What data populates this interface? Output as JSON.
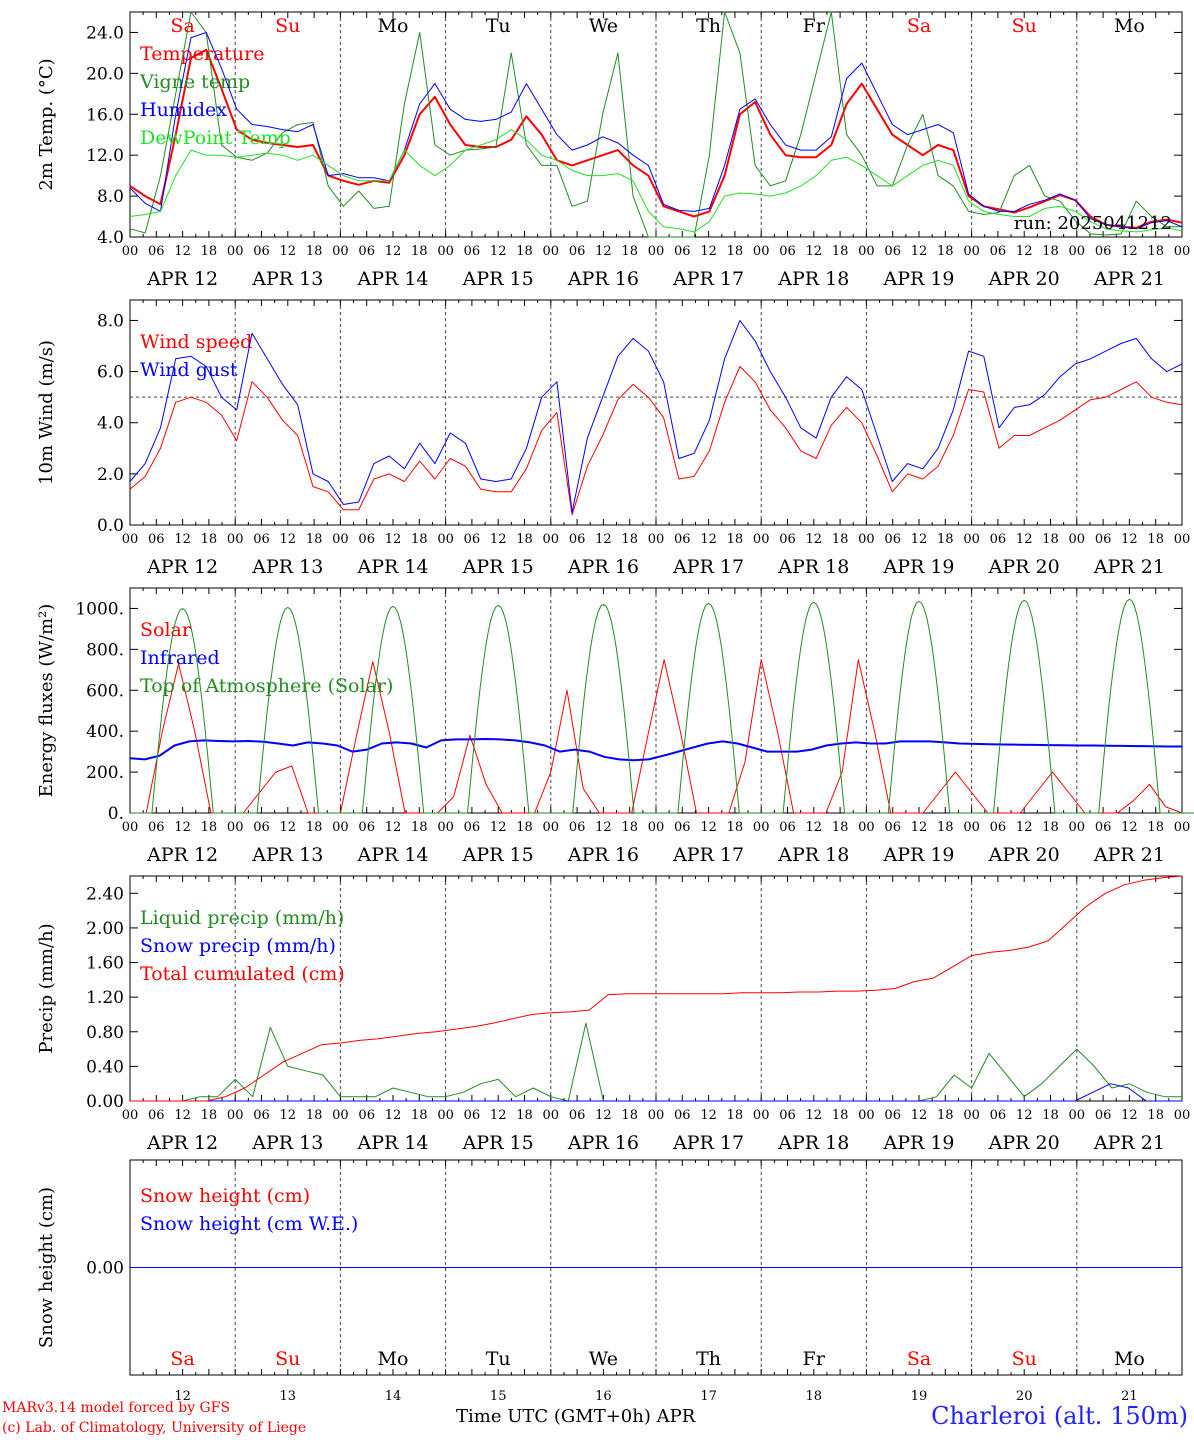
{
  "days": [
    "12",
    "13",
    "14",
    "15",
    "16",
    "17",
    "18",
    "19",
    "20",
    "21"
  ],
  "weekdays": [
    "Sa",
    "Su",
    "Mo",
    "Tu",
    "We",
    "Th",
    "Fr",
    "Sa",
    "Su",
    "Mo"
  ],
  "weekday_colors": [
    "#ff0000",
    "#ff0000",
    "#000000",
    "#000000",
    "#000000",
    "#000000",
    "#000000",
    "#ff0000",
    "#ff0000",
    "#000000"
  ],
  "month": "APR",
  "hour_ticks": [
    "00",
    "06",
    "12",
    "18"
  ],
  "date_labels": [
    "APR 12",
    "APR 13",
    "APR 14",
    "APR 15",
    "APR 16",
    "APR 17",
    "APR 18",
    "APR 19",
    "APR 20",
    "APR 21"
  ],
  "footer": {
    "credit1": "MARv3.14 model forced by GFS",
    "credit2": "(c) Lab. of Climatology, University of Liege",
    "xtitle": "Time UTC (GMT+0h) APR",
    "station": "Charleroi (alt. 150m)"
  },
  "chart_data": [
    {
      "type": "line",
      "ylabel": "2m Temp. (°C)",
      "ylim": [
        4,
        26
      ],
      "yticks": [
        "4.0",
        "8.0",
        "12.0",
        "16.0",
        "20.0",
        "24.0"
      ],
      "yticks_values": [
        4,
        8,
        12,
        16,
        20,
        24
      ],
      "annotation": "run: 2025041212",
      "x_start": "2025-04-12 00:00",
      "x_step_hours": 6,
      "series": [
        {
          "name": "Temperature",
          "color": "#ff0000",
          "width": 2,
          "values": [
            9.0,
            8.0,
            7.2,
            14.0,
            21.5,
            22.3,
            18.5,
            14.5,
            13.5,
            13.2,
            13.0,
            12.8,
            13.0,
            10.0,
            9.5,
            9.1,
            9.5,
            9.3,
            12.0,
            16.0,
            17.7,
            15.0,
            13.0,
            12.8,
            12.8,
            13.5,
            15.8,
            14.0,
            11.5,
            11.0,
            11.5,
            12.0,
            12.5,
            11.0,
            10.0,
            7.0,
            6.5,
            6.0,
            6.5,
            10.0,
            16.0,
            17.2,
            14.0,
            12.0,
            11.8,
            11.8,
            13.0,
            17.0,
            19.0,
            16.5,
            14.0,
            13.0,
            12.0,
            13.0,
            12.5,
            8.0,
            7.0,
            6.7,
            6.4,
            6.9,
            7.5,
            8.1,
            7.6,
            6.0,
            5.2,
            5.0,
            4.9,
            5.5,
            5.7,
            5.4
          ]
        },
        {
          "name": "Vigne temp",
          "color": "#228b22",
          "width": 1,
          "values": [
            4.8,
            4.4,
            10.0,
            18.0,
            26.0,
            24.0,
            13.0,
            11.8,
            11.5,
            12.2,
            14.2,
            15.0,
            15.2,
            9.0,
            7.0,
            8.5,
            6.8,
            7.0,
            17.0,
            24.0,
            13.0,
            12.0,
            12.5,
            12.6,
            12.8,
            22.0,
            13.0,
            11.0,
            11.0,
            7.0,
            7.5,
            16.0,
            22.0,
            8.0,
            4.0,
            4.0,
            4.0,
            4.0,
            12.0,
            26.0,
            22.0,
            11.0,
            9.0,
            9.5,
            14.0,
            20.0,
            26.0,
            14.0,
            12.0,
            9.0,
            9.0,
            13.0,
            16.0,
            10.0,
            9.0,
            6.5,
            6.2,
            6.4,
            10.0,
            11.0,
            8.0,
            7.5,
            5.6,
            4.3,
            4.2,
            4.3,
            7.5,
            6.0,
            5.0,
            5.0
          ]
        },
        {
          "name": "Humidex",
          "color": "#0000ff",
          "width": 1,
          "values": [
            8.8,
            7.3,
            6.5,
            16.0,
            23.5,
            24.0,
            20.5,
            16.5,
            15.0,
            14.8,
            14.5,
            14.3,
            15.0,
            10.0,
            10.2,
            9.8,
            9.8,
            9.5,
            12.5,
            17.0,
            19.0,
            16.5,
            15.5,
            15.3,
            15.5,
            16.2,
            19.0,
            16.5,
            14.0,
            12.5,
            13.0,
            13.8,
            13.2,
            12.0,
            11.0,
            7.2,
            6.6,
            6.5,
            6.8,
            11.0,
            16.5,
            17.5,
            15.0,
            13.0,
            12.5,
            12.5,
            13.8,
            19.5,
            21.0,
            18.0,
            15.0,
            14.0,
            14.5,
            15.0,
            14.2,
            8.2,
            7.0,
            6.5,
            6.5,
            7.2,
            7.6,
            8.2,
            7.6,
            5.8,
            5.2,
            5.0,
            4.8,
            5.4,
            5.6,
            5.0
          ]
        },
        {
          "name": "DewPoint Temp",
          "color": "#22e022",
          "width": 1,
          "values": [
            6.0,
            6.2,
            6.5,
            10.0,
            12.5,
            12.0,
            12.0,
            11.8,
            12.0,
            12.2,
            12.0,
            11.5,
            12.0,
            11.0,
            10.0,
            9.5,
            9.5,
            9.5,
            12.5,
            11.0,
            10.0,
            11.0,
            12.5,
            13.0,
            13.5,
            14.5,
            13.5,
            12.0,
            11.5,
            10.5,
            10.0,
            10.0,
            10.2,
            9.5,
            6.5,
            5.0,
            4.8,
            4.5,
            5.5,
            8.0,
            8.3,
            8.2,
            8.0,
            8.3,
            9.0,
            10.0,
            11.5,
            11.8,
            11.0,
            10.0,
            9.0,
            10.0,
            11.0,
            11.5,
            11.0,
            7.5,
            6.5,
            6.2,
            6.0,
            6.0,
            6.8,
            7.0,
            6.5,
            5.5,
            4.8,
            4.6,
            4.5,
            4.7,
            4.9,
            4.6
          ]
        }
      ]
    },
    {
      "type": "line",
      "ylabel": "10m Wind (m/s)",
      "ylim": [
        0,
        8.8
      ],
      "yticks": [
        "0.0",
        "2.0",
        "4.0",
        "6.0",
        "8.0"
      ],
      "yticks_values": [
        0,
        2,
        4,
        6,
        8
      ],
      "reference_line": 5.0,
      "series": [
        {
          "name": "Wind speed",
          "color": "#ff0000",
          "width": 1,
          "values": [
            1.4,
            1.9,
            3.0,
            4.8,
            5.0,
            4.8,
            4.3,
            3.3,
            5.6,
            5.0,
            4.1,
            3.5,
            1.5,
            1.3,
            0.6,
            0.6,
            1.8,
            2.0,
            1.7,
            2.5,
            1.8,
            2.6,
            2.3,
            1.4,
            1.3,
            1.3,
            2.2,
            3.7,
            4.4,
            0.4,
            2.3,
            3.5,
            4.9,
            5.5,
            5.0,
            4.2,
            1.8,
            1.9,
            2.9,
            4.8,
            6.2,
            5.6,
            4.5,
            3.8,
            2.9,
            2.6,
            3.9,
            4.6,
            4.0,
            2.7,
            1.3,
            2.0,
            1.8,
            2.3,
            3.5,
            5.3,
            5.2,
            3.0,
            3.5,
            3.5,
            3.8,
            4.1,
            4.5,
            4.9,
            5.0,
            5.3,
            5.6,
            5.0,
            4.8,
            4.7
          ]
        },
        {
          "name": "Wind gust",
          "color": "#0000ff",
          "width": 1,
          "values": [
            1.7,
            2.4,
            3.8,
            6.5,
            6.6,
            6.2,
            5.0,
            4.5,
            7.5,
            6.5,
            5.5,
            4.7,
            2.0,
            1.7,
            0.8,
            0.9,
            2.4,
            2.7,
            2.2,
            3.2,
            2.4,
            3.6,
            3.2,
            1.8,
            1.7,
            1.8,
            3.0,
            5.0,
            5.6,
            0.5,
            3.4,
            5.0,
            6.6,
            7.3,
            6.8,
            5.6,
            2.6,
            2.8,
            4.1,
            6.5,
            8.0,
            7.2,
            6.0,
            5.0,
            3.8,
            3.4,
            5.0,
            5.8,
            5.3,
            3.5,
            1.7,
            2.4,
            2.2,
            3.0,
            4.5,
            6.8,
            6.6,
            3.8,
            4.6,
            4.7,
            5.1,
            5.8,
            6.3,
            6.5,
            6.8,
            7.1,
            7.3,
            6.5,
            6.0,
            6.3
          ]
        }
      ]
    },
    {
      "type": "line",
      "ylabel": "Energy fluxes (W/m²)",
      "ylim": [
        0,
        1100
      ],
      "yticks": [
        "0.",
        "200.",
        "400.",
        "600.",
        "800.",
        "1000."
      ],
      "yticks_values": [
        0,
        200,
        400,
        600,
        800,
        1000
      ],
      "series": [
        {
          "name": "Solar",
          "color": "#ff0000",
          "width": 1,
          "values": [
            0,
            0,
            400,
            730,
            400,
            0,
            0,
            0,
            100,
            200,
            230,
            0,
            0,
            0,
            380,
            740,
            400,
            0,
            0,
            0,
            80,
            380,
            140,
            0,
            0,
            0,
            200,
            600,
            120,
            0,
            0,
            0,
            380,
            750,
            400,
            0,
            0,
            0,
            250,
            750,
            400,
            0,
            0,
            0,
            200,
            750,
            400,
            0,
            0,
            0,
            100,
            200,
            100,
            0,
            0,
            0,
            100,
            200,
            100,
            0,
            0,
            0,
            60,
            140,
            30,
            0
          ]
        },
        {
          "name": "Infrared",
          "color": "#0000ff",
          "width": 2,
          "values": [
            268,
            262,
            280,
            330,
            350,
            355,
            352,
            350,
            352,
            348,
            340,
            330,
            345,
            340,
            330,
            300,
            310,
            340,
            345,
            340,
            320,
            355,
            360,
            360,
            362,
            360,
            355,
            345,
            330,
            300,
            310,
            300,
            275,
            262,
            258,
            262,
            280,
            300,
            320,
            340,
            350,
            340,
            320,
            300,
            300,
            300,
            310,
            330,
            340,
            345,
            340,
            340,
            350,
            350,
            350,
            345,
            340,
            338,
            336,
            335,
            334,
            333,
            332,
            331,
            330,
            330,
            329,
            328,
            327,
            326,
            325,
            325
          ]
        },
        {
          "name": "Top of Atmosphere (Solar)",
          "color": "#228b22",
          "width": 1,
          "values_peak_per_day": [
            1000,
            1005,
            1010,
            1015,
            1020,
            1025,
            1030,
            1035,
            1040,
            1045
          ]
        }
      ]
    },
    {
      "type": "line",
      "ylabel": "Precip (mm/h)",
      "ylim": [
        0,
        2.6
      ],
      "yticks": [
        "0.00",
        "0.40",
        "0.80",
        "1.20",
        "1.60",
        "2.00",
        "2.40"
      ],
      "yticks_values": [
        0,
        0.4,
        0.8,
        1.2,
        1.6,
        2.0,
        2.4
      ],
      "series": [
        {
          "name": "Liquid precip (mm/h)",
          "color": "#228b22",
          "width": 1,
          "values": [
            0,
            0,
            0,
            0,
            0.05,
            0.05,
            0.25,
            0.05,
            0.85,
            0.4,
            0.35,
            0.3,
            0.05,
            0.05,
            0.05,
            0.15,
            0.1,
            0.05,
            0.05,
            0.1,
            0.2,
            0.25,
            0.05,
            0.15,
            0.05,
            0,
            0.9,
            0,
            0,
            0,
            0,
            0,
            0,
            0,
            0,
            0,
            0,
            0,
            0,
            0,
            0,
            0,
            0,
            0,
            0,
            0,
            0.05,
            0.3,
            0.15,
            0.55,
            0.3,
            0.05,
            0.2,
            0.4,
            0.6,
            0.4,
            0.15,
            0.2,
            0.1,
            0.05,
            0.05
          ]
        },
        {
          "name": "Snow precip (mm/h)",
          "color": "#0000ff",
          "width": 1,
          "values": [
            0,
            0,
            0,
            0,
            0,
            0,
            0,
            0,
            0,
            0,
            0,
            0,
            0,
            0,
            0,
            0,
            0,
            0,
            0,
            0,
            0,
            0,
            0,
            0,
            0,
            0,
            0,
            0,
            0,
            0,
            0,
            0,
            0,
            0,
            0,
            0,
            0,
            0,
            0,
            0,
            0,
            0,
            0,
            0,
            0,
            0,
            0,
            0,
            0,
            0,
            0,
            0,
            0,
            0,
            0.1,
            0.2,
            0.15,
            0,
            0,
            0
          ]
        },
        {
          "name": "Total cumulated (cm)",
          "color": "#ff0000",
          "width": 1,
          "values": [
            0,
            0,
            0,
            0,
            0,
            0.05,
            0.15,
            0.3,
            0.45,
            0.55,
            0.65,
            0.67,
            0.7,
            0.72,
            0.75,
            0.78,
            0.8,
            0.83,
            0.86,
            0.9,
            0.95,
            1.0,
            1.02,
            1.03,
            1.05,
            1.23,
            1.24,
            1.24,
            1.24,
            1.24,
            1.24,
            1.24,
            1.25,
            1.25,
            1.25,
            1.26,
            1.26,
            1.27,
            1.27,
            1.28,
            1.3,
            1.38,
            1.42,
            1.55,
            1.68,
            1.72,
            1.74,
            1.78,
            1.85,
            2.05,
            2.25,
            2.4,
            2.5,
            2.55,
            2.58,
            2.6
          ]
        }
      ]
    },
    {
      "type": "line",
      "ylabel": "Snow height (cm)",
      "yticks": [
        "0.00"
      ],
      "yticks_values": [
        0
      ],
      "series": [
        {
          "name": "Snow height (cm)",
          "color": "#ff0000",
          "width": 1,
          "values": [
            0,
            0
          ]
        },
        {
          "name": "Snow height (cm W.E.)",
          "color": "#0000ff",
          "width": 1,
          "values": [
            0,
            0
          ]
        }
      ]
    }
  ]
}
